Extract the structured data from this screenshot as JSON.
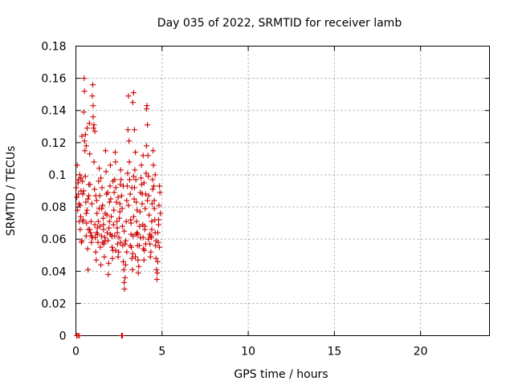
{
  "chart_data": {
    "type": "scatter",
    "title": "Day 035 of 2022, SRMTID for receiver lamb",
    "xlabel": "GPS time / hours",
    "ylabel": "SRMTID / TECUs",
    "xlim": [
      0,
      24
    ],
    "ylim": [
      0,
      0.18
    ],
    "x_ticks": [
      "0",
      "5",
      "10",
      "15",
      "20"
    ],
    "y_ticks": [
      "0",
      "0.02",
      "0.04",
      "0.06",
      "0.08",
      "0.1",
      "0.12",
      "0.14",
      "0.16",
      "0.18"
    ],
    "grid": true,
    "marker": "plus",
    "color": "#cc0000",
    "series": [
      {
        "x": [
          0.02,
          0.05,
          0.08,
          0.1,
          0.12,
          0.15,
          0.18,
          0.2,
          0.22,
          0.25,
          0.28,
          0.3,
          0.32,
          0.35,
          0.38,
          0.4,
          0.42,
          0.45,
          0.48,
          0.5,
          0.52,
          0.55,
          0.58,
          0.6,
          0.62,
          0.65,
          0.68,
          0.7,
          0.72,
          0.75,
          0.78,
          0.8,
          0.82,
          0.85,
          0.88,
          0.9,
          0.92,
          0.95,
          0.98,
          1.0,
          1.02,
          1.05,
          1.08,
          1.1,
          1.12,
          1.15,
          1.18,
          1.2,
          1.22,
          1.25,
          1.28,
          1.3,
          1.32,
          1.35,
          1.38,
          1.4,
          1.42,
          1.45,
          1.48,
          1.5,
          1.52,
          1.55,
          1.58,
          1.6,
          1.62,
          1.65,
          1.68,
          1.7,
          1.72,
          1.75,
          1.78,
          1.8,
          1.82,
          1.85,
          1.88,
          1.9,
          1.92,
          1.95,
          1.98,
          2.0,
          2.02,
          2.05,
          2.08,
          2.1,
          2.12,
          2.15,
          2.18,
          2.2,
          2.22,
          2.25,
          2.28,
          2.3,
          2.32,
          2.35,
          2.38,
          2.4,
          2.42,
          2.45,
          2.48,
          2.5,
          2.52,
          2.55,
          2.58,
          2.6,
          2.62,
          2.65,
          2.68,
          2.7,
          2.72,
          2.75,
          2.78,
          2.8,
          2.82,
          2.85,
          2.88,
          2.9,
          2.92,
          2.95,
          2.98,
          3.0,
          3.02,
          3.05,
          3.08,
          3.1,
          3.12,
          3.15,
          3.18,
          3.2,
          3.22,
          3.25,
          3.28,
          3.3,
          3.32,
          3.35,
          3.38,
          3.4,
          3.42,
          3.45,
          3.48,
          3.5,
          3.52,
          3.55,
          3.58,
          3.6,
          3.62,
          3.65,
          3.68,
          3.7,
          3.72,
          3.75,
          3.78,
          3.8,
          3.82,
          3.85,
          3.88,
          3.9,
          3.92,
          3.95,
          3.98,
          4.0,
          4.02,
          4.05,
          4.08,
          4.1,
          4.12,
          4.15,
          4.18,
          4.2,
          4.22,
          4.25,
          4.28,
          4.3,
          4.32,
          4.35,
          4.38,
          4.4,
          4.42,
          4.45,
          4.48,
          4.5,
          4.52,
          4.55,
          4.58,
          4.6,
          4.62,
          4.65,
          4.68,
          4.7,
          4.72,
          4.75,
          4.78,
          4.8,
          4.82,
          4.85,
          4.88,
          4.9,
          0.5,
          0.55,
          0.6,
          0.65,
          1.0,
          1.05,
          1.1,
          3.3,
          3.35,
          3.4,
          3.9,
          4.1,
          0.3,
          0.7,
          0.9,
          1.25,
          1.7,
          2.0,
          2.3,
          2.6,
          2.95,
          3.15,
          3.45,
          3.75,
          4.05,
          4.35,
          4.65,
          4.85,
          0.4,
          0.8,
          1.2,
          1.6,
          2.1,
          2.4,
          2.8,
          3.2,
          3.6,
          4.0,
          4.4,
          4.8,
          0.25,
          0.6,
          1.35,
          1.95,
          2.55,
          3.05,
          3.55,
          4.15,
          4.55,
          0.45,
          1.15,
          1.85,
          2.45,
          3.25,
          3.85,
          4.45,
          0.15,
          0.75,
          1.45,
          2.15,
          2.75,
          3.35,
          3.95,
          4.6,
          0.35,
          0.95,
          1.55,
          2.25,
          2.85,
          3.5,
          4.2,
          4.75,
          0.05,
          0.12,
          0.2,
          2.65,
          2.7
        ],
        "y": [
          0.092,
          0.086,
          0.106,
          0.078,
          0.095,
          0.088,
          0.082,
          0.071,
          0.1,
          0.066,
          0.074,
          0.09,
          0.058,
          0.124,
          0.096,
          0.088,
          0.072,
          0.139,
          0.16,
          0.152,
          0.115,
          0.099,
          0.083,
          0.062,
          0.07,
          0.078,
          0.054,
          0.041,
          0.066,
          0.087,
          0.132,
          0.113,
          0.094,
          0.064,
          0.071,
          0.058,
          0.082,
          0.149,
          0.156,
          0.143,
          0.129,
          0.108,
          0.091,
          0.069,
          0.061,
          0.052,
          0.047,
          0.084,
          0.076,
          0.063,
          0.058,
          0.071,
          0.096,
          0.104,
          0.087,
          0.068,
          0.055,
          0.044,
          0.062,
          0.079,
          0.092,
          0.081,
          0.073,
          0.066,
          0.057,
          0.049,
          0.061,
          0.076,
          0.115,
          0.102,
          0.088,
          0.075,
          0.064,
          0.059,
          0.038,
          0.045,
          0.067,
          0.071,
          0.093,
          0.106,
          0.085,
          0.074,
          0.062,
          0.055,
          0.048,
          0.053,
          0.069,
          0.078,
          0.089,
          0.097,
          0.114,
          0.108,
          0.092,
          0.083,
          0.071,
          0.064,
          0.057,
          0.049,
          0.052,
          0.061,
          0.073,
          0.082,
          0.094,
          0.103,
          0.097,
          0.087,
          0.079,
          0.068,
          0.056,
          0.046,
          0.041,
          0.033,
          0.029,
          0.036,
          0.044,
          0.059,
          0.071,
          0.084,
          0.093,
          0.101,
          0.128,
          0.149,
          0.121,
          0.108,
          0.097,
          0.088,
          0.072,
          0.063,
          0.055,
          0.048,
          0.041,
          0.051,
          0.062,
          0.074,
          0.085,
          0.092,
          0.103,
          0.114,
          0.097,
          0.083,
          0.071,
          0.064,
          0.056,
          0.047,
          0.039,
          0.043,
          0.056,
          0.068,
          0.077,
          0.089,
          0.098,
          0.106,
          0.094,
          0.082,
          0.069,
          0.061,
          0.054,
          0.047,
          0.053,
          0.066,
          0.079,
          0.088,
          0.101,
          0.118,
          0.143,
          0.131,
          0.112,
          0.099,
          0.087,
          0.075,
          0.063,
          0.057,
          0.049,
          0.052,
          0.061,
          0.071,
          0.082,
          0.097,
          0.115,
          0.106,
          0.093,
          0.084,
          0.072,
          0.064,
          0.056,
          0.048,
          0.041,
          0.035,
          0.039,
          0.046,
          0.058,
          0.069,
          0.081,
          0.093,
          0.089,
          0.076,
          0.121,
          0.125,
          0.118,
          0.129,
          0.136,
          0.131,
          0.127,
          0.145,
          0.151,
          0.128,
          0.112,
          0.141,
          0.098,
          0.085,
          0.062,
          0.067,
          0.059,
          0.063,
          0.053,
          0.058,
          0.052,
          0.056,
          0.049,
          0.061,
          0.057,
          0.062,
          0.059,
          0.055,
          0.071,
          0.066,
          0.064,
          0.069,
          0.062,
          0.067,
          0.065,
          0.07,
          0.063,
          0.068,
          0.066,
          0.072,
          0.081,
          0.076,
          0.079,
          0.083,
          0.077,
          0.081,
          0.078,
          0.084,
          0.079,
          0.09,
          0.087,
          0.089,
          0.086,
          0.092,
          0.088,
          0.091,
          0.097,
          0.094,
          0.098,
          0.096,
          0.093,
          0.099,
          0.095,
          0.1,
          0.059,
          0.061,
          0.058,
          0.062,
          0.057,
          0.063,
          0.06,
          0.064,
          0.0,
          0.0,
          0.0,
          0.0,
          0.0
        ]
      }
    ]
  }
}
